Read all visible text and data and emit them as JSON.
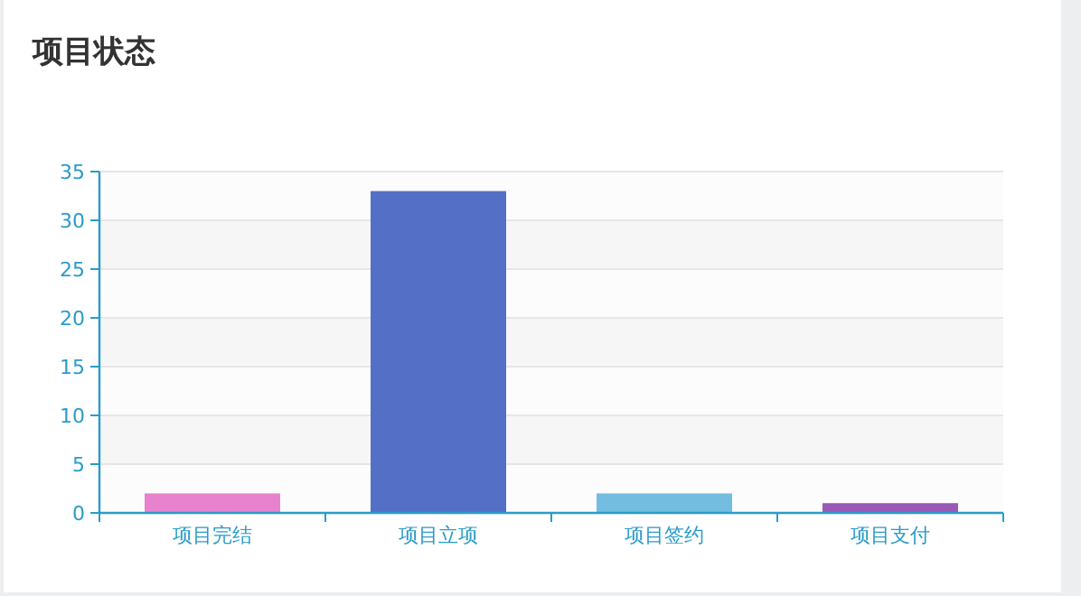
{
  "chart_data": {
    "type": "bar",
    "title": "项目状态",
    "categories": [
      "项目完结",
      "项目立项",
      "项目签约",
      "项目支付"
    ],
    "values": [
      2,
      33,
      2,
      1
    ],
    "colors": [
      "#e882cf",
      "#5470c6",
      "#73bde0",
      "#9b59b6"
    ],
    "ylim": [
      0,
      35
    ],
    "yticks": [
      0,
      5,
      10,
      15,
      20,
      25,
      30,
      35
    ],
    "grid": "y"
  }
}
